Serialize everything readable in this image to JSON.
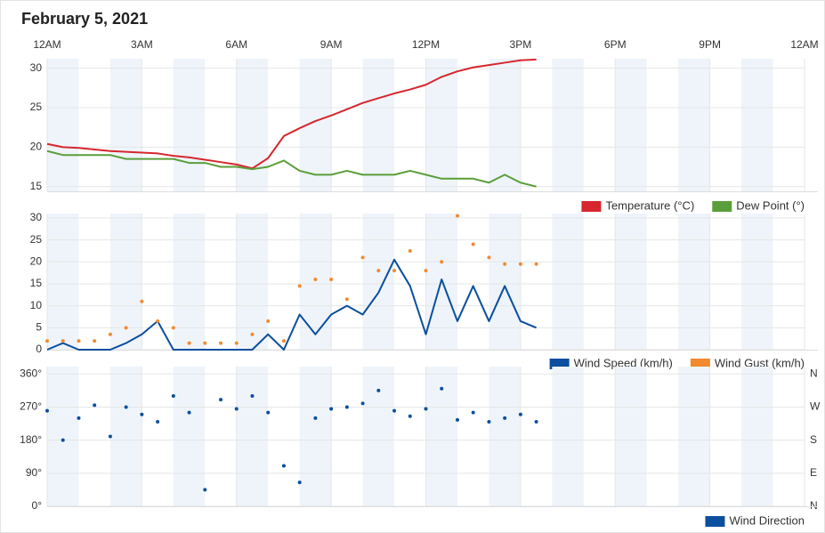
{
  "title": "February 5, 2021",
  "chart_data": [
    {
      "type": "line",
      "xlim": [
        0,
        24
      ],
      "xticks": [
        {
          "value": 0,
          "label": "12AM"
        },
        {
          "value": 3,
          "label": "3AM"
        },
        {
          "value": 6,
          "label": "6AM"
        },
        {
          "value": 9,
          "label": "9AM"
        },
        {
          "value": 12,
          "label": "12PM"
        },
        {
          "value": 15,
          "label": "3PM"
        },
        {
          "value": 18,
          "label": "6PM"
        },
        {
          "value": 21,
          "label": "9PM"
        },
        {
          "value": 24,
          "label": "12AM"
        }
      ],
      "ylim": [
        14.4,
        31.2
      ],
      "yticks": [
        15,
        20,
        25,
        30
      ],
      "grid": true,
      "x": [
        0,
        0.5,
        1,
        1.5,
        2,
        2.5,
        3,
        3.5,
        4,
        4.5,
        5,
        5.5,
        6,
        6.5,
        7,
        7.5,
        8,
        8.5,
        9,
        9.5,
        10,
        10.5,
        11,
        11.5,
        12,
        12.5,
        13,
        13.5,
        14,
        14.5,
        15,
        15.5
      ],
      "series": [
        {
          "name": "Temperature (°C)",
          "color": "#d7262e",
          "mark": "line",
          "values": [
            20.4,
            20.0,
            19.9,
            19.7,
            19.5,
            19.4,
            19.3,
            19.2,
            18.9,
            18.7,
            18.4,
            18.1,
            17.8,
            17.3,
            18.6,
            21.4,
            22.4,
            23.3,
            24.0,
            24.8,
            25.6,
            26.2,
            26.8,
            27.3,
            27.9,
            28.9,
            29.6,
            30.1,
            30.4,
            30.7,
            31.0,
            31.1
          ]
        },
        {
          "name": "Dew Point (°)",
          "color": "#5a9e3a",
          "mark": "line",
          "values": [
            19.5,
            19.0,
            19.0,
            19.0,
            19.0,
            18.5,
            18.5,
            18.5,
            18.5,
            18.0,
            18.0,
            17.5,
            17.5,
            17.2,
            17.5,
            18.3,
            17.0,
            16.5,
            16.5,
            17.0,
            16.5,
            16.5,
            16.5,
            17.0,
            16.5,
            16.0,
            16.0,
            16.0,
            15.5,
            16.5,
            15.5,
            15.0
          ]
        }
      ]
    },
    {
      "type": "line",
      "xlim": [
        0,
        24
      ],
      "ylim": [
        0,
        31
      ],
      "yticks": [
        0,
        5,
        10,
        15,
        20,
        25,
        30
      ],
      "grid": true,
      "x": [
        0,
        0.5,
        1,
        1.5,
        2,
        2.5,
        3,
        3.5,
        4,
        4.5,
        5,
        5.5,
        6,
        6.5,
        7,
        7.5,
        8,
        8.5,
        9,
        9.5,
        10,
        10.5,
        11,
        11.5,
        12,
        12.5,
        13,
        13.5,
        14,
        14.5,
        15,
        15.5
      ],
      "series": [
        {
          "name": "Wind Speed (km/h)",
          "color": "#0b4f9e",
          "mark": "line",
          "values": [
            0,
            1.5,
            0,
            0,
            0,
            1.5,
            3.5,
            6.5,
            0,
            0,
            0,
            0,
            0,
            0,
            3.5,
            0,
            8,
            3.5,
            8,
            10,
            8,
            13,
            20.5,
            14.5,
            3.5,
            16,
            6.5,
            14.5,
            6.5,
            14.5,
            6.5,
            5
          ]
        },
        {
          "name": "Wind Gust (km/h)",
          "color": "#f28a30",
          "mark": "dot",
          "values": [
            2,
            2,
            2,
            2,
            3.5,
            5,
            11,
            6.5,
            5,
            1.5,
            1.5,
            1.5,
            1.5,
            3.5,
            6.5,
            2,
            14.5,
            16,
            16,
            11.5,
            21,
            18,
            18,
            22.5,
            18,
            20,
            30.5,
            24,
            21,
            19.5,
            19.5,
            19.5
          ]
        }
      ]
    },
    {
      "type": "scatter",
      "xlim": [
        0,
        24
      ],
      "ylim": [
        0,
        380
      ],
      "yticks": [
        {
          "value": 0,
          "label": "0°"
        },
        {
          "value": 90,
          "label": "90°"
        },
        {
          "value": 180,
          "label": "180°"
        },
        {
          "value": 270,
          "label": "270°"
        },
        {
          "value": 360,
          "label": "360°"
        }
      ],
      "y2lim": [
        0,
        380
      ],
      "y2ticks": [
        {
          "value": 0,
          "label": "N"
        },
        {
          "value": 90,
          "label": "E"
        },
        {
          "value": 180,
          "label": "S"
        },
        {
          "value": 270,
          "label": "W"
        },
        {
          "value": 360,
          "label": "N"
        }
      ],
      "grid": true,
      "x": [
        0,
        0.5,
        1,
        1.5,
        2,
        2.5,
        3,
        3.5,
        4,
        4.5,
        5,
        5.5,
        6,
        6.5,
        7,
        7.5,
        8,
        8.5,
        9,
        9.5,
        10,
        10.5,
        11,
        11.5,
        12,
        12.5,
        13,
        13.5,
        14,
        14.5,
        15,
        15.5
      ],
      "series": [
        {
          "name": "Wind Direction",
          "color": "#0b4f9e",
          "mark": "dot",
          "values": [
            260,
            180,
            240,
            275,
            190,
            270,
            250,
            230,
            300,
            255,
            45,
            290,
            265,
            300,
            255,
            110,
            65,
            240,
            265,
            270,
            280,
            315,
            260,
            245,
            265,
            320,
            235,
            255,
            230,
            240,
            250,
            230
          ]
        }
      ]
    }
  ]
}
